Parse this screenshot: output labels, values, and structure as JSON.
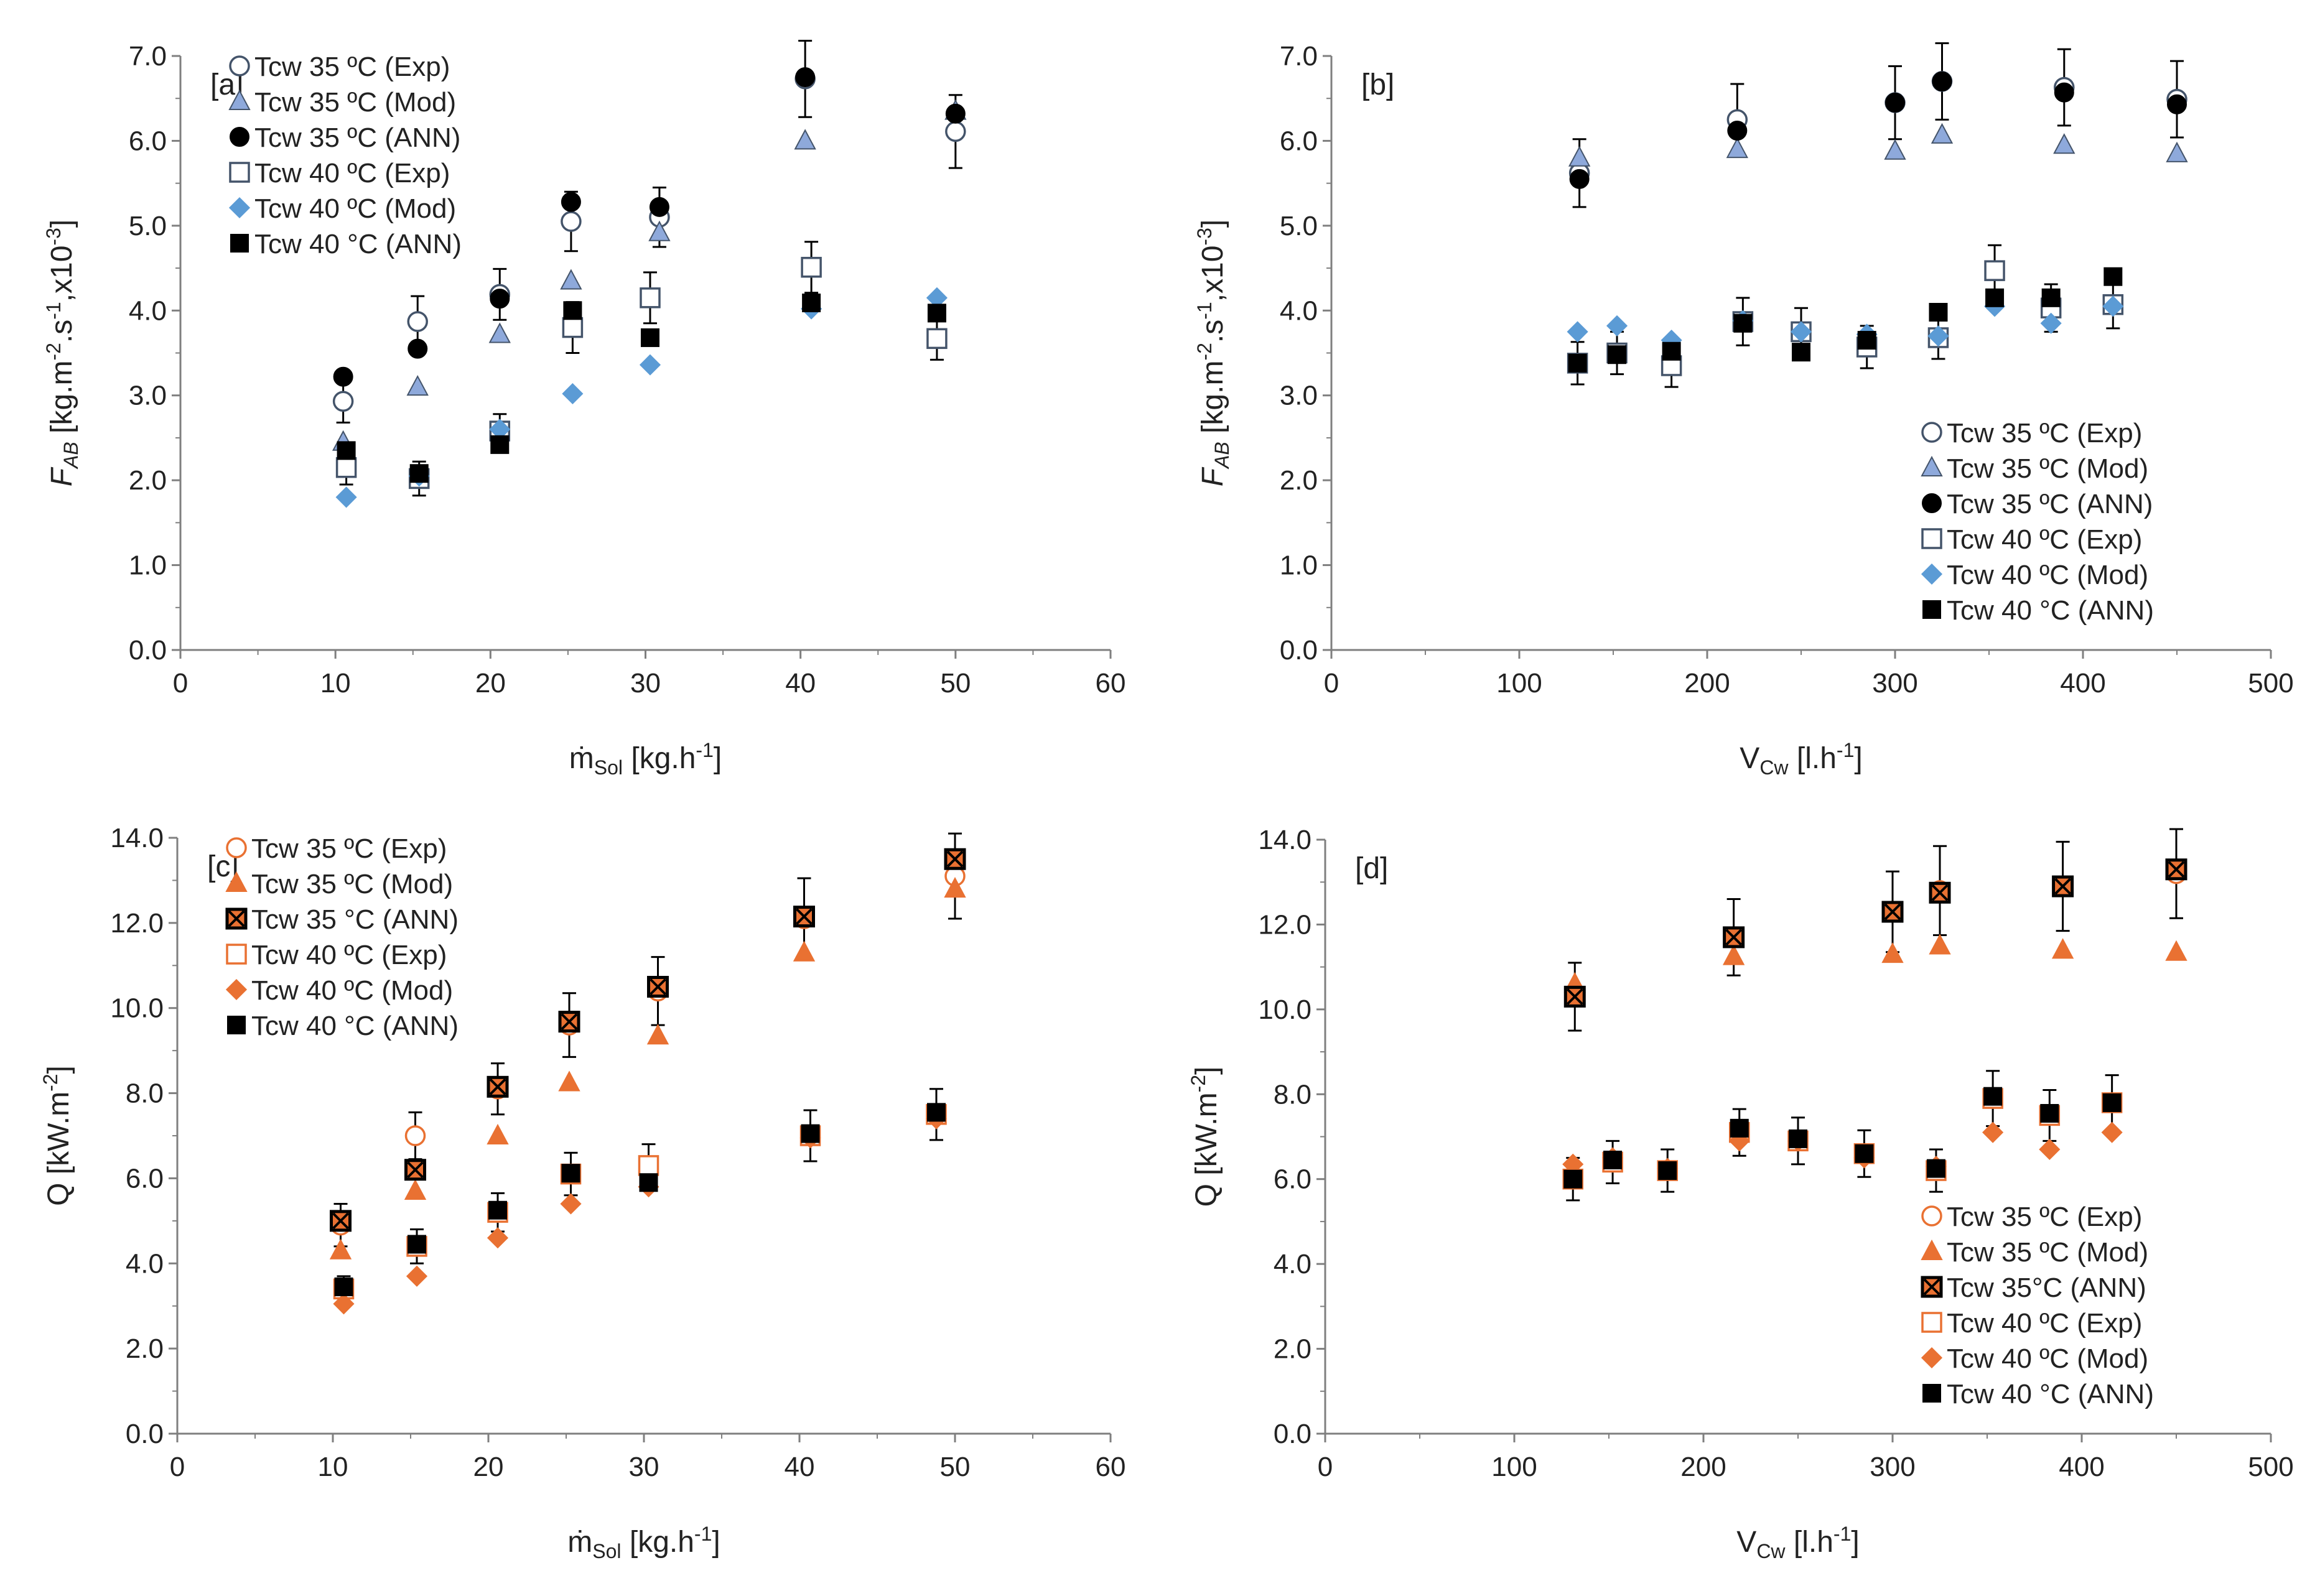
{
  "colors": {
    "blue_edge": "#44546A",
    "blue_fill": "#8EA9DB",
    "blue_diamond": "#5B9BD5",
    "orange": "#E97132",
    "black": "#000000"
  },
  "chart_data": [
    {
      "panel": "[a]",
      "type": "scatter",
      "xlabel_prefix": "ṁ",
      "xlabel_sub": "Sol",
      "xlabel_unit": " [kg.h",
      "xlabel_sup": "-1",
      "xlabel_end": "]",
      "ylabel_main": "F",
      "ylabel_sub": "AB",
      "ylabel_rest": " [kg.m",
      "ylabel_sup1": "-2",
      "ylabel_mid": ".s",
      "ylabel_sup2": "-1",
      "ylabel_mid2": ",x10",
      "ylabel_sup3": "-3",
      "ylabel_end": "]",
      "xlim": [
        0,
        60
      ],
      "ylim": [
        0,
        7
      ],
      "xticks": [
        "0",
        "10",
        "20",
        "30",
        "40",
        "50",
        "60"
      ],
      "yticks": [
        "0.0",
        "1.0",
        "2.0",
        "3.0",
        "4.0",
        "5.0",
        "6.0",
        "7.0"
      ],
      "legend_position": "top-left",
      "series": [
        {
          "name": "Tcw 35 ºC (Exp)",
          "marker": "circle-open",
          "color": "blue",
          "x": [
            10.5,
            15.3,
            20.6,
            25.2,
            30.9,
            40.3,
            50
          ],
          "y": [
            2.93,
            3.87,
            4.19,
            5.05,
            5.1,
            6.73,
            6.11
          ],
          "err": [
            0.25,
            0.3,
            0.3,
            0.35,
            0.35,
            0.45,
            0.43
          ]
        },
        {
          "name": "Tcw 35 ºC (Mod)",
          "marker": "triangle",
          "color": "blue",
          "x": [
            10.5,
            15.3,
            20.6,
            25.2,
            30.9,
            40.3,
            50
          ],
          "y": [
            2.45,
            3.1,
            3.72,
            4.35,
            4.92,
            6.0,
            6.35
          ]
        },
        {
          "name": "Tcw 35 ºC (ANN)",
          "marker": "circle-filled",
          "color": "black",
          "x": [
            10.5,
            15.3,
            20.6,
            25.2,
            30.9,
            40.3,
            50
          ],
          "y": [
            3.22,
            3.55,
            4.14,
            5.28,
            5.22,
            6.75,
            6.32
          ]
        },
        {
          "name": "Tcw 40 ºC (Exp)",
          "marker": "square-open",
          "color": "blue",
          "x": [
            10.7,
            15.4,
            20.6,
            25.3,
            30.3,
            40.7,
            48.8
          ],
          "y": [
            2.15,
            2.02,
            2.58,
            3.8,
            4.15,
            4.51,
            3.67
          ],
          "err": [
            0.2,
            0.2,
            0.2,
            0.3,
            0.3,
            0.3,
            0.25
          ]
        },
        {
          "name": "Tcw 40 ºC (Mod)",
          "marker": "diamond",
          "color": "blue",
          "x": [
            10.7,
            15.4,
            20.6,
            25.3,
            30.3,
            40.7,
            48.8
          ],
          "y": [
            1.8,
            2.05,
            2.6,
            3.02,
            3.36,
            4.02,
            4.15
          ]
        },
        {
          "name": "Tcw 40 °C (ANN)",
          "marker": "square-filled",
          "color": "black",
          "x": [
            10.7,
            15.4,
            20.6,
            25.3,
            30.3,
            40.7,
            48.8
          ],
          "y": [
            2.35,
            2.08,
            2.42,
            4.0,
            3.68,
            4.09,
            3.97
          ]
        }
      ]
    },
    {
      "panel": "[b]",
      "type": "scatter",
      "xlabel_main": "V",
      "xlabel_sub": "Cw",
      "xlabel_unit": " [l.h",
      "xlabel_sup": "-1",
      "xlabel_end": "]",
      "ylabel_main": "F",
      "ylabel_sub": "AB",
      "ylabel_rest": " [kg.m",
      "ylabel_sup1": "-2",
      "ylabel_mid": ".s",
      "ylabel_sup2": "-1",
      "ylabel_mid2": ",x10",
      "ylabel_sup3": "-3",
      "ylabel_end": "]",
      "xlim": [
        0,
        500
      ],
      "ylim": [
        0,
        7
      ],
      "xticks": [
        "0",
        "100",
        "200",
        "300",
        "400",
        "500"
      ],
      "yticks": [
        "0.0",
        "1.0",
        "2.0",
        "3.0",
        "4.0",
        "5.0",
        "6.0",
        "7.0"
      ],
      "legend_position": "bottom-right",
      "series": [
        {
          "name": "Tcw 35 ºC (Exp)",
          "marker": "circle-open",
          "color": "blue",
          "x": [
            132,
            216,
            300,
            325,
            390,
            450
          ],
          "y": [
            5.62,
            6.25,
            6.45,
            6.7,
            6.63,
            6.49
          ],
          "err": [
            0.4,
            0.42,
            0.43,
            0.45,
            0.45,
            0.45
          ]
        },
        {
          "name": "Tcw 35 ºC (Mod)",
          "marker": "triangle",
          "color": "blue",
          "x": [
            132,
            216,
            300,
            325,
            390,
            450
          ],
          "y": [
            5.8,
            5.9,
            5.88,
            6.07,
            5.95,
            5.85
          ]
        },
        {
          "name": "Tcw 35 ºC (ANN)",
          "marker": "circle-filled",
          "color": "black",
          "x": [
            132,
            216,
            300,
            325,
            390,
            450
          ],
          "y": [
            5.55,
            6.12,
            6.45,
            6.7,
            6.57,
            6.43
          ]
        },
        {
          "name": "Tcw 40 ºC (Exp)",
          "marker": "square-open",
          "color": "blue",
          "x": [
            131,
            152,
            181,
            219,
            250,
            285,
            323,
            353,
            383,
            416
          ],
          "y": [
            3.38,
            3.5,
            3.35,
            3.87,
            3.75,
            3.57,
            3.68,
            4.47,
            4.03,
            4.07
          ],
          "err": [
            0.25,
            0.25,
            0.25,
            0.28,
            0.28,
            0.25,
            0.25,
            0.3,
            0.28,
            0.28
          ]
        },
        {
          "name": "Tcw 40 ºC (Mod)",
          "marker": "diamond",
          "color": "blue",
          "x": [
            131,
            152,
            181,
            219,
            250,
            285,
            323,
            353,
            383,
            416
          ],
          "y": [
            3.75,
            3.82,
            3.65,
            3.88,
            3.75,
            3.72,
            3.7,
            4.05,
            3.85,
            4.05
          ]
        },
        {
          "name": "Tcw 40 °C (ANN)",
          "marker": "square-filled",
          "color": "black",
          "x": [
            131,
            152,
            181,
            219,
            250,
            285,
            323,
            353,
            383,
            416
          ],
          "y": [
            3.38,
            3.48,
            3.52,
            3.85,
            3.51,
            3.65,
            3.98,
            4.15,
            4.15,
            4.4
          ]
        }
      ]
    },
    {
      "panel": "[c]",
      "type": "scatter",
      "xlabel_prefix": "ṁ",
      "xlabel_sub": "Sol",
      "xlabel_unit": " [kg.h",
      "xlabel_sup": "-1",
      "xlabel_end": "]",
      "ylabel_main": "Q",
      "ylabel_sub": "",
      "ylabel_rest": " [kW.m",
      "ylabel_sup1": "-2",
      "ylabel_mid": "",
      "ylabel_sup2": "",
      "ylabel_mid2": "",
      "ylabel_sup3": "",
      "ylabel_end": "]",
      "xlim": [
        0,
        60
      ],
      "ylim": [
        0,
        14
      ],
      "xticks": [
        "0",
        "10",
        "20",
        "30",
        "40",
        "50",
        "60"
      ],
      "yticks": [
        "0.0",
        "2.0",
        "4.0",
        "6.0",
        "8.0",
        "10.0",
        "12.0",
        "14.0"
      ],
      "legend_position": "top-left",
      "series": [
        {
          "name": "Tcw 35 ºC (Exp)",
          "marker": "circle-open",
          "color": "orange",
          "x": [
            10.5,
            15.3,
            20.6,
            25.2,
            30.9,
            40.3,
            50
          ],
          "y": [
            4.9,
            7.0,
            8.1,
            9.6,
            10.4,
            12.1,
            13.1
          ],
          "err": [
            0.5,
            0.55,
            0.6,
            0.75,
            0.8,
            0.95,
            1.0
          ]
        },
        {
          "name": "Tcw 35 ºC (Mod)",
          "marker": "triangle",
          "color": "orange",
          "x": [
            10.5,
            15.3,
            20.6,
            25.2,
            30.9,
            40.3,
            50
          ],
          "y": [
            4.3,
            5.7,
            7.0,
            8.25,
            9.35,
            11.3,
            12.8
          ]
        },
        {
          "name": "Tcw 35 °C (ANN)",
          "marker": "square-x",
          "color": "black",
          "x": [
            10.5,
            15.3,
            20.6,
            25.2,
            30.9,
            40.3,
            50
          ],
          "y": [
            5.0,
            6.2,
            8.15,
            9.68,
            10.5,
            12.15,
            13.5
          ]
        },
        {
          "name": "Tcw 40 ºC (Exp)",
          "marker": "square-open",
          "color": "orange",
          "x": [
            10.7,
            15.4,
            20.6,
            25.3,
            30.3,
            40.7,
            48.8
          ],
          "y": [
            3.4,
            4.4,
            5.2,
            6.1,
            6.3,
            7.0,
            7.5
          ],
          "err": [
            0.3,
            0.4,
            0.45,
            0.5,
            0.5,
            0.6,
            0.6
          ]
        },
        {
          "name": "Tcw 40 ºC (Mod)",
          "marker": "diamond",
          "color": "orange",
          "x": [
            10.7,
            15.4,
            20.6,
            25.3,
            30.3,
            40.7,
            48.8
          ],
          "y": [
            3.05,
            3.7,
            4.6,
            5.4,
            5.8,
            6.95,
            7.4
          ]
        },
        {
          "name": "Tcw 40 °C (ANN)",
          "marker": "square-filled",
          "color": "black",
          "x": [
            10.7,
            15.4,
            20.6,
            25.3,
            30.3,
            40.7,
            48.8
          ],
          "y": [
            3.45,
            4.45,
            5.25,
            6.12,
            5.9,
            7.05,
            7.55
          ]
        }
      ]
    },
    {
      "panel": "[d]",
      "type": "scatter",
      "xlabel_main": "V",
      "xlabel_sub": "Cw",
      "xlabel_unit": " [l.h",
      "xlabel_sup": "-1",
      "xlabel_end": "]",
      "ylabel_main": "Q",
      "ylabel_sub": "",
      "ylabel_rest": " [kW.m",
      "ylabel_sup1": "-2",
      "ylabel_mid": "",
      "ylabel_sup2": "",
      "ylabel_mid2": "",
      "ylabel_sup3": "",
      "ylabel_end": "]",
      "xlim": [
        0,
        500
      ],
      "ylim": [
        0,
        14
      ],
      "xticks": [
        "0",
        "100",
        "200",
        "300",
        "400",
        "500"
      ],
      "yticks": [
        "0.0",
        "2.0",
        "4.0",
        "6.0",
        "8.0",
        "10.0",
        "12.0",
        "14.0"
      ],
      "legend_position": "bottom-right",
      "series": [
        {
          "name": "Tcw 35 ºC (Exp)",
          "marker": "circle-open",
          "color": "orange",
          "x": [
            132,
            216,
            300,
            325,
            390,
            450
          ],
          "y": [
            10.3,
            11.7,
            12.3,
            12.8,
            12.9,
            13.2
          ],
          "err": [
            0.8,
            0.9,
            0.95,
            1.05,
            1.05,
            1.05
          ]
        },
        {
          "name": "Tcw 35 ºC (Mod)",
          "marker": "triangle",
          "color": "orange",
          "x": [
            132,
            216,
            300,
            325,
            390,
            450
          ],
          "y": [
            10.6,
            11.25,
            11.3,
            11.5,
            11.4,
            11.35
          ]
        },
        {
          "name": "Tcw 35°C (ANN)",
          "marker": "square-x",
          "color": "black",
          "x": [
            132,
            216,
            300,
            325,
            390,
            450
          ],
          "y": [
            10.3,
            11.7,
            12.3,
            12.75,
            12.9,
            13.3
          ]
        },
        {
          "name": "Tcw 40 ºC (Exp)",
          "marker": "square-open",
          "color": "orange",
          "x": [
            131,
            152,
            181,
            219,
            250,
            285,
            323,
            353,
            383,
            416
          ],
          "y": [
            6.0,
            6.4,
            6.2,
            7.1,
            6.9,
            6.6,
            6.2,
            7.9,
            7.5,
            7.8
          ],
          "err": [
            0.5,
            0.5,
            0.5,
            0.55,
            0.55,
            0.55,
            0.5,
            0.65,
            0.6,
            0.65
          ]
        },
        {
          "name": "Tcw 40 ºC (Mod)",
          "marker": "diamond",
          "color": "orange",
          "x": [
            131,
            152,
            181,
            219,
            250,
            285,
            323,
            353,
            383,
            416
          ],
          "y": [
            6.35,
            6.5,
            6.25,
            6.9,
            6.9,
            6.5,
            6.3,
            7.1,
            6.7,
            7.1
          ]
        },
        {
          "name": "Tcw 40 °C (ANN)",
          "marker": "square-filled",
          "color": "black",
          "x": [
            131,
            152,
            181,
            219,
            250,
            285,
            323,
            353,
            383,
            416
          ],
          "y": [
            6.0,
            6.45,
            6.2,
            7.2,
            6.95,
            6.6,
            6.25,
            7.95,
            7.55,
            7.8
          ]
        }
      ]
    }
  ]
}
